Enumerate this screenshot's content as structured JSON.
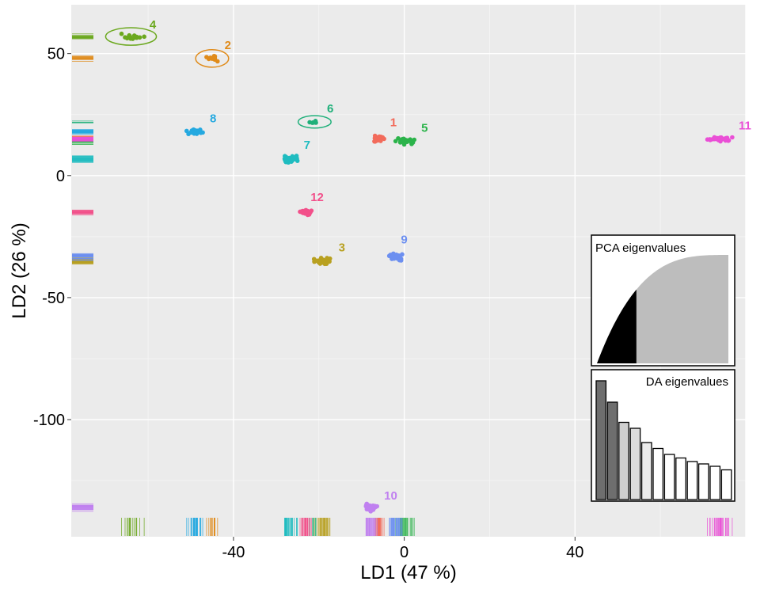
{
  "chart_data": {
    "type": "scatter",
    "xlabel": "LD1 (47 %)",
    "ylabel": "LD2 (26 %)",
    "xlim": [
      -78,
      80
    ],
    "ylim": [
      -148,
      70
    ],
    "xticks": [
      -40,
      0,
      40
    ],
    "yticks": [
      50,
      0,
      -50,
      -100
    ],
    "grid": true,
    "series": [
      {
        "name": "1",
        "color": "#f26b5b",
        "center": [
          -6,
          15
        ],
        "spread": [
          1.6,
          1.0
        ],
        "n": 30,
        "ellipse": false
      },
      {
        "name": "2",
        "color": "#e08b1a",
        "center": [
          -45,
          48
        ],
        "spread": [
          1.2,
          1.0
        ],
        "n": 14,
        "ellipse": true
      },
      {
        "name": "3",
        "color": "#b8a020",
        "center": [
          -19,
          -35
        ],
        "spread": [
          1.6,
          1.0
        ],
        "n": 28,
        "ellipse": false
      },
      {
        "name": "4",
        "color": "#6ba81e",
        "center": [
          -64,
          57
        ],
        "spread": [
          2.0,
          1.0
        ],
        "n": 16,
        "ellipse": true
      },
      {
        "name": "5",
        "color": "#2bb34a",
        "center": [
          0,
          14
        ],
        "spread": [
          1.8,
          0.9
        ],
        "n": 30,
        "ellipse": false
      },
      {
        "name": "6",
        "color": "#1fb07a",
        "center": [
          -21,
          22
        ],
        "spread": [
          1.2,
          0.6
        ],
        "n": 6,
        "ellipse": true
      },
      {
        "name": "7",
        "color": "#1fbcc0",
        "center": [
          -27,
          7
        ],
        "spread": [
          1.5,
          1.0
        ],
        "n": 28,
        "ellipse": false
      },
      {
        "name": "8",
        "color": "#25a9e0",
        "center": [
          -49,
          18
        ],
        "spread": [
          1.5,
          0.9
        ],
        "n": 30,
        "ellipse": false
      },
      {
        "name": "9",
        "color": "#6c8ff0",
        "center": [
          -2,
          -33
        ],
        "spread": [
          1.5,
          1.2
        ],
        "n": 30,
        "ellipse": false
      },
      {
        "name": "10",
        "color": "#c080f0",
        "center": [
          -8,
          -136
        ],
        "spread": [
          1.2,
          1.5
        ],
        "n": 28,
        "ellipse": false
      },
      {
        "name": "11",
        "color": "#ea4fd6",
        "center": [
          74,
          15
        ],
        "spread": [
          2.0,
          0.8
        ],
        "n": 32,
        "ellipse": false
      },
      {
        "name": "12",
        "color": "#f2508a",
        "center": [
          -23,
          -15
        ],
        "spread": [
          1.2,
          0.9
        ],
        "n": 22,
        "ellipse": false
      }
    ],
    "insets": [
      {
        "title": "PCA eigenvalues",
        "type": "area",
        "retained_fraction": 0.3
      },
      {
        "title": "DA eigenvalues",
        "type": "bar",
        "values": [
          1.0,
          0.82,
          0.65,
          0.6,
          0.48,
          0.43,
          0.38,
          0.35,
          0.32,
          0.3,
          0.28,
          0.25
        ],
        "retained": 2
      }
    ]
  }
}
